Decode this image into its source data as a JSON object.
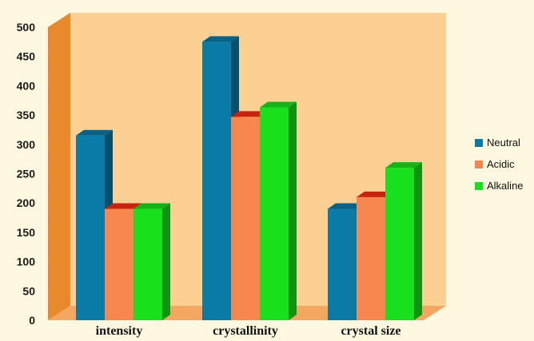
{
  "chart_data": {
    "type": "bar",
    "categories": [
      "intensity",
      "crystallinity",
      "crystal size"
    ],
    "series": [
      {
        "name": "Neutral",
        "values": [
          315,
          475,
          190
        ],
        "color": "#0a7aa6"
      },
      {
        "name": "Acidic",
        "values": [
          190,
          347,
          210
        ],
        "color": "#f7874e"
      },
      {
        "name": "Alkaline",
        "values": [
          190,
          363,
          260
        ],
        "color": "#19e01d"
      }
    ],
    "y_ticks": [
      "0",
      "50",
      "100",
      "150",
      "200",
      "250",
      "300",
      "350",
      "400",
      "450",
      "500"
    ],
    "ylim": [
      0,
      500
    ],
    "grid": false,
    "legend_position": "right",
    "three_d": true,
    "wall_color": "#fccf92",
    "side_wall_color": "#e8892c",
    "floor_color": "#f4a760",
    "background_color": "#fff8e0"
  }
}
